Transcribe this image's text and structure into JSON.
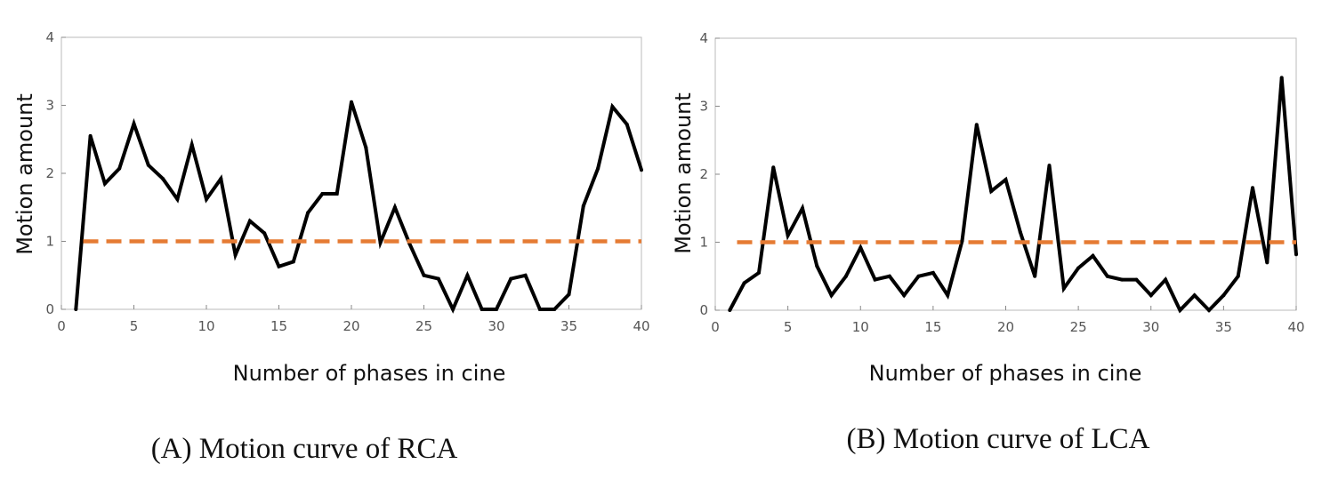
{
  "chart_data": [
    {
      "type": "line",
      "panel": "A",
      "caption": "(A) Motion curve of RCA",
      "xlabel": "Number of phases in cine",
      "ylabel": "Motion amount",
      "xlim": [
        0,
        40
      ],
      "ylim": [
        0,
        4
      ],
      "xticks": [
        "0",
        "5",
        "10",
        "15",
        "20",
        "25",
        "30",
        "35",
        "40"
      ],
      "yticks": [
        "0",
        "1",
        "2",
        "3",
        "4"
      ],
      "grid": false,
      "series": [
        {
          "name": "motion",
          "color": "#000000",
          "x": [
            1,
            2,
            3,
            4,
            5,
            6,
            7,
            8,
            9,
            10,
            11,
            12,
            13,
            14,
            15,
            16,
            17,
            18,
            19,
            20,
            21,
            22,
            23,
            24,
            25,
            26,
            27,
            28,
            29,
            30,
            31,
            32,
            33,
            34,
            35,
            36,
            37,
            38,
            39,
            40
          ],
          "values": [
            0,
            2.55,
            1.85,
            2.07,
            2.73,
            2.12,
            1.92,
            1.62,
            2.42,
            1.62,
            1.92,
            0.8,
            1.3,
            1.12,
            0.63,
            0.7,
            1.42,
            1.7,
            1.7,
            3.05,
            2.38,
            0.98,
            1.5,
            0.97,
            0.5,
            0.45,
            0,
            0.5,
            0,
            0,
            0.45,
            0.5,
            0,
            0,
            0.22,
            1.52,
            2.07,
            2.98,
            2.72,
            2.05
          ]
        },
        {
          "name": "threshold",
          "style": "dashed",
          "color": "#E57B34",
          "x": [
            1.5,
            40
          ],
          "values": [
            1,
            1
          ]
        }
      ]
    },
    {
      "type": "line",
      "panel": "B",
      "caption": "(B) Motion curve of LCA",
      "xlabel": "Number of phases in cine",
      "ylabel": "Motion amount",
      "xlim": [
        0,
        40
      ],
      "ylim": [
        0,
        4
      ],
      "xticks": [
        "0",
        "5",
        "10",
        "15",
        "20",
        "25",
        "30",
        "35",
        "40"
      ],
      "yticks": [
        "0",
        "1",
        "2",
        "3",
        "4"
      ],
      "grid": false,
      "series": [
        {
          "name": "motion",
          "color": "#000000",
          "x": [
            1,
            2,
            3,
            4,
            5,
            6,
            7,
            8,
            9,
            10,
            11,
            12,
            13,
            14,
            15,
            16,
            17,
            18,
            19,
            20,
            21,
            22,
            23,
            24,
            25,
            26,
            27,
            28,
            29,
            30,
            31,
            32,
            33,
            34,
            35,
            36,
            37,
            38,
            39,
            40
          ],
          "values": [
            0,
            0.4,
            0.55,
            2.1,
            1.1,
            1.5,
            0.65,
            0.22,
            0.5,
            0.92,
            0.45,
            0.5,
            0.22,
            0.5,
            0.55,
            0.22,
            1.02,
            2.73,
            1.75,
            1.92,
            1.15,
            0.5,
            2.13,
            0.32,
            0.62,
            0.8,
            0.5,
            0.45,
            0.45,
            0.22,
            0.45,
            0,
            0.22,
            0,
            0.22,
            0.5,
            1.8,
            0.7,
            3.42,
            0.82
          ]
        },
        {
          "name": "threshold",
          "style": "dashed",
          "color": "#E57B34",
          "x": [
            1.5,
            40
          ],
          "values": [
            1,
            1
          ]
        }
      ]
    }
  ]
}
